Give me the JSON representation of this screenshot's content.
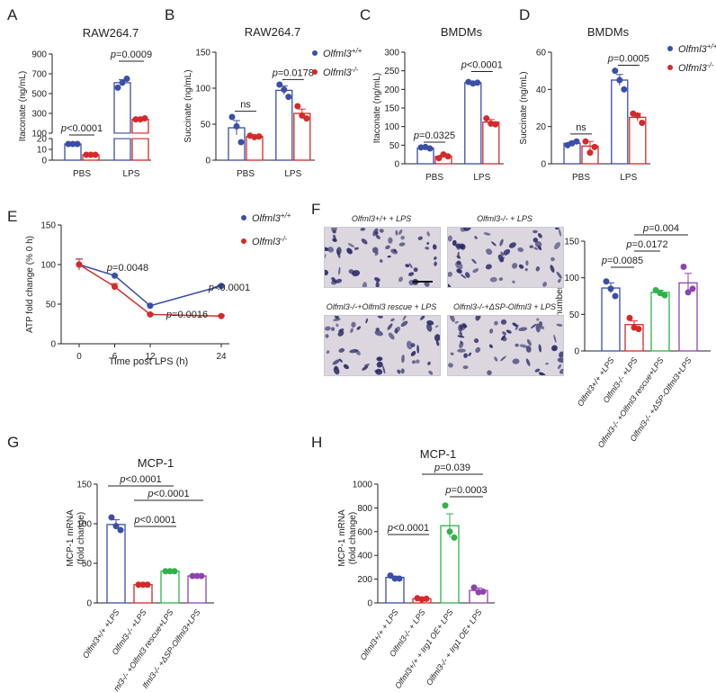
{
  "colors": {
    "wt": "#3b4ea8",
    "ko": "#d42a2a",
    "rescue": "#2fb34a",
    "dsp": "#8e44ad",
    "text": "#222222",
    "micro_bg": "#dcd6df",
    "micro_fg": "#2a2a66"
  },
  "panel_letters": [
    "A",
    "B",
    "C",
    "D",
    "E",
    "F",
    "G",
    "H"
  ],
  "legend": {
    "wt_label": "Olfml3",
    "wt_sup": "+/+",
    "ko_label": "Olfml3",
    "ko_sup": "-/-"
  },
  "micrographs": {
    "titles": [
      "Olfml3+/+ + LPS",
      "Olfml3-/- + LPS",
      "Olfml3-/-+Olfml3 rescue + LPS",
      "Olfml3-/-+ΔSP-Olfml3 + LPS"
    ]
  },
  "chart_data": [
    {
      "panel": "A",
      "type": "bar",
      "title": "RAW264.7",
      "ylabel": "Itaconate (ng/mL)",
      "categories": [
        "PBS",
        "LPS"
      ],
      "broken_axis": true,
      "yticks_lower": [
        0,
        10,
        20
      ],
      "yticks_upper": [
        100,
        300,
        500,
        700,
        900
      ],
      "series": [
        {
          "name": "Olfml3+/+",
          "values": [
            15,
            610
          ],
          "points": [
            [
              15,
              15,
              15
            ],
            [
              560,
              610,
              650
            ]
          ],
          "err": [
            1,
            30
          ]
        },
        {
          "name": "Olfml3-/-",
          "values": [
            5,
            240
          ],
          "points": [
            [
              5,
              5,
              5
            ],
            [
              240,
              240,
              250
            ]
          ],
          "err": [
            0.5,
            10
          ]
        }
      ],
      "annotations": [
        "p<0.0001",
        "p=0.0009"
      ]
    },
    {
      "panel": "B",
      "type": "bar",
      "title": "RAW264.7",
      "ylabel": "Succinate (ng/mL)",
      "categories": [
        "PBS",
        "LPS"
      ],
      "ylim": [
        0,
        150
      ],
      "yticks": [
        0,
        50,
        100,
        150
      ],
      "series": [
        {
          "name": "Olfml3+/+",
          "values": [
            45,
            97
          ],
          "points": [
            [
              60,
              47,
              25
            ],
            [
              105,
              98,
              88
            ]
          ],
          "err": [
            10,
            6
          ]
        },
        {
          "name": "Olfml3-/-",
          "values": [
            33,
            65
          ],
          "points": [
            [
              34,
              32,
              33
            ],
            [
              75,
              62,
              58
            ]
          ],
          "err": [
            2,
            6
          ]
        }
      ],
      "annotations": [
        "ns",
        "p=0.0178"
      ]
    },
    {
      "panel": "C",
      "type": "bar",
      "title": "BMDMs",
      "ylabel": "Itaconate (ng/mL)",
      "categories": [
        "PBS",
        "LPS"
      ],
      "ylim": [
        0,
        300
      ],
      "yticks": [
        0,
        50,
        100,
        150,
        200,
        250,
        300
      ],
      "series": [
        {
          "name": "Olfml3+/+",
          "values": [
            42,
            218
          ],
          "points": [
            [
              44,
              45,
              41
            ],
            [
              220,
              216,
              218
            ]
          ],
          "err": [
            2,
            3
          ]
        },
        {
          "name": "Olfml3-/-",
          "values": [
            20,
            112
          ],
          "points": [
            [
              15,
              25,
              20
            ],
            [
              122,
              108,
              106
            ]
          ],
          "err": [
            4,
            7
          ]
        }
      ],
      "annotations": [
        "p=0.0325",
        "p<0.0001"
      ]
    },
    {
      "panel": "D",
      "type": "bar",
      "title": "BMDMs",
      "ylabel": "Succinate (ng/mL)",
      "categories": [
        "PBS",
        "LPS"
      ],
      "ylim": [
        0,
        60
      ],
      "yticks": [
        0,
        20,
        40,
        60
      ],
      "series": [
        {
          "name": "Olfml3+/+",
          "values": [
            11,
            45
          ],
          "points": [
            [
              10,
              11,
              12
            ],
            [
              50,
              45,
              40
            ]
          ],
          "err": [
            1,
            3
          ]
        },
        {
          "name": "Olfml3-/-",
          "values": [
            9.5,
            25
          ],
          "points": [
            [
              12,
              6,
              9
            ],
            [
              27,
              26,
              22
            ]
          ],
          "err": [
            2.5,
            2
          ]
        }
      ],
      "annotations": [
        "ns",
        "p=0.0005"
      ]
    },
    {
      "panel": "E",
      "type": "line",
      "xlabel": "Time post LPS (h)",
      "ylabel": "ATP fold change (% 0 h)",
      "x": [
        0,
        6,
        12,
        24
      ],
      "xticks": [
        0,
        6,
        12,
        24
      ],
      "ylim": [
        0,
        150
      ],
      "yticks": [
        0,
        50,
        100,
        150
      ],
      "series": [
        {
          "name": "Olfml3+/+",
          "values": [
            100,
            86,
            48,
            73
          ],
          "err": [
            7,
            1,
            1,
            1
          ]
        },
        {
          "name": "Olfml3-/-",
          "values": [
            100,
            72,
            37,
            35
          ],
          "err": [
            7,
            4,
            1,
            1
          ]
        }
      ],
      "annotations": [
        "p=0.0048",
        "p=0.0016",
        "p<0.0001"
      ]
    },
    {
      "panel": "F",
      "type": "bar",
      "ylabel": "Cell number / fields",
      "ylim": [
        0,
        150
      ],
      "yticks": [
        0,
        50,
        100,
        150
      ],
      "categories": [
        "Olfml3+/+ +LPS",
        "Olfml3-/- +LPS",
        "Olfml3-/- +Olfml3 rescue+LPS",
        "Olfml3-/- +ΔSP-Olfml3+LPS"
      ],
      "values": [
        86,
        36,
        80,
        93
      ],
      "points": [
        [
          95,
          85,
          75
        ],
        [
          45,
          32,
          30
        ],
        [
          83,
          79,
          76
        ],
        [
          115,
          80,
          85
        ]
      ],
      "err": [
        7,
        5,
        3,
        13
      ],
      "annotations": [
        "p=0.0085",
        "p=0.0172",
        "p=0.004"
      ]
    },
    {
      "panel": "G",
      "type": "bar",
      "title": "MCP-1",
      "ylabel": "MCP-1 mRNA (fold change)",
      "ylim": [
        0,
        150
      ],
      "yticks": [
        0,
        50,
        100,
        150
      ],
      "categories": [
        "Olfml3+/+ +LPS",
        "Olfml3-/- +LPS",
        "ml3-/- +Olfml3 rescue+LPS",
        "lfml3-/- +ΔSP-Olfml3+LPS"
      ],
      "values": [
        99,
        23,
        40,
        34
      ],
      "points": [
        [
          108,
          97,
          92
        ],
        [
          23,
          23,
          23
        ],
        [
          40,
          40,
          40
        ],
        [
          34,
          34,
          34
        ]
      ],
      "err": [
        6,
        0.5,
        0.5,
        0.5
      ],
      "annotations": [
        "p<0.0001",
        "p<0.0001",
        "p<0.0001"
      ]
    },
    {
      "panel": "H",
      "type": "bar",
      "title": "MCP-1",
      "ylabel": "MCP-1 mRNA (fold change)",
      "ylim": [
        0,
        1000
      ],
      "yticks": [
        0,
        200,
        400,
        600,
        800,
        1000
      ],
      "categories": [
        "Olfml3+/+ + LPS",
        "Olfml3-/- + LPS",
        "Olfml3+/+ + Irg1 OE+ LPS",
        "Olfml3-/- + Irg1 OE+ LPS"
      ],
      "values": [
        215,
        35,
        650,
        105
      ],
      "points": [
        [
          230,
          205,
          205
        ],
        [
          40,
          30,
          35
        ],
        [
          820,
          600,
          550
        ],
        [
          130,
          90,
          95
        ]
      ],
      "err": [
        10,
        5,
        100,
        20
      ],
      "annotations": [
        "p<0.0001",
        "p=0.039",
        "p=0.0003"
      ]
    }
  ]
}
